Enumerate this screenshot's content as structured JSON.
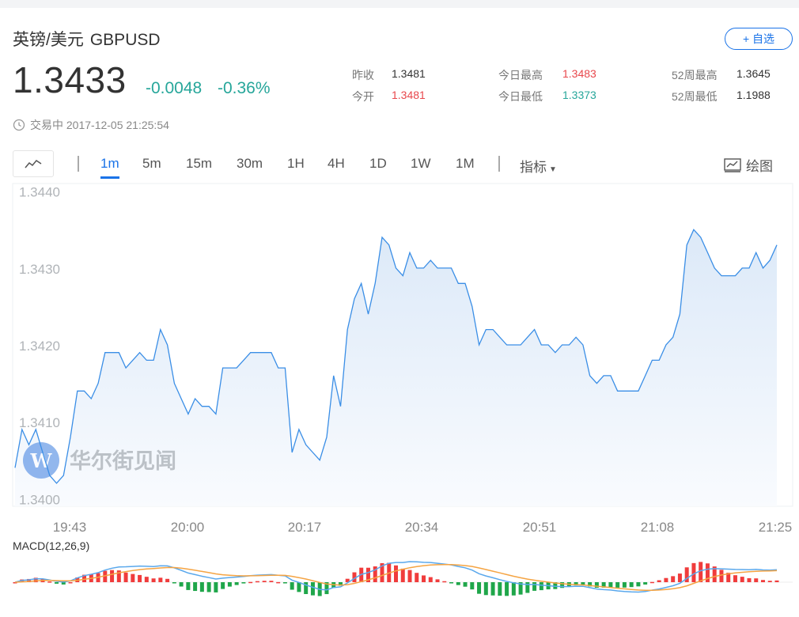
{
  "header": {
    "name": "英镑/美元",
    "code": "GBPUSD",
    "watch_label": "+ 自选",
    "price": "1.3433",
    "change": "-0.0048",
    "change_pct": "-0.36%",
    "status_text": "交易中 2017-12-05 21:25:54"
  },
  "stats": {
    "prev_close_label": "昨收",
    "prev_close": "1.3481",
    "open_label": "今开",
    "open": "1.3481",
    "high_label": "今日最高",
    "high": "1.3483",
    "low_label": "今日最低",
    "low": "1.3373",
    "w52_high_label": "52周最高",
    "w52_high": "1.3645",
    "w52_low_label": "52周最低",
    "w52_low": "1.1988"
  },
  "toolbar": {
    "timeframes": [
      "1m",
      "5m",
      "15m",
      "30m",
      "1H",
      "4H",
      "1D",
      "1W",
      "1M"
    ],
    "active_timeframe": "1m",
    "indicator_label": "指标",
    "draw_label": "绘图"
  },
  "watermark": {
    "text": "华尔街见闻"
  },
  "colors": {
    "line": "#3a8ee6",
    "up": "#e8474c",
    "down": "#26a69a",
    "accent": "#1a73e8",
    "macd_up": "#f03c3c",
    "macd_down": "#1fa64a",
    "dif": "#5aa8ec",
    "dea": "#f5a443"
  },
  "macd": {
    "label": "MACD(12,26,9)"
  },
  "chart_data": {
    "type": "line",
    "title": "",
    "xlabel": "",
    "ylabel": "",
    "ylim": [
      1.3399,
      1.3441
    ],
    "yticks": [
      "1.3440",
      "1.3430",
      "1.3420",
      "1.3410",
      "1.3400"
    ],
    "ytick_values": [
      1.344,
      1.343,
      1.342,
      1.341,
      1.34
    ],
    "xticks": [
      "19:43",
      "20:00",
      "20:17",
      "20:34",
      "20:51",
      "21:08",
      "21:25"
    ],
    "x_start": "19:40",
    "x_step_minutes": 1,
    "values": [
      1.3404,
      1.3409,
      1.3407,
      1.3409,
      1.3406,
      1.3403,
      1.3402,
      1.3403,
      1.3408,
      1.3414,
      1.3414,
      1.3413,
      1.3415,
      1.3419,
      1.3419,
      1.3419,
      1.3417,
      1.3418,
      1.3419,
      1.3418,
      1.3418,
      1.3422,
      1.342,
      1.3415,
      1.3413,
      1.3411,
      1.3413,
      1.3412,
      1.3412,
      1.3411,
      1.3417,
      1.3417,
      1.3417,
      1.3418,
      1.3419,
      1.3419,
      1.3419,
      1.3419,
      1.3417,
      1.3417,
      1.3406,
      1.3409,
      1.3407,
      1.3406,
      1.3405,
      1.3408,
      1.3416,
      1.3412,
      1.3422,
      1.3426,
      1.3428,
      1.3424,
      1.3428,
      1.3434,
      1.3433,
      1.343,
      1.3429,
      1.3432,
      1.343,
      1.343,
      1.3431,
      1.343,
      1.343,
      1.343,
      1.3428,
      1.3428,
      1.3425,
      1.342,
      1.3422,
      1.3422,
      1.3421,
      1.342,
      1.342,
      1.342,
      1.3421,
      1.3422,
      1.342,
      1.342,
      1.3419,
      1.342,
      1.342,
      1.3421,
      1.342,
      1.3416,
      1.3415,
      1.3416,
      1.3416,
      1.3414,
      1.3414,
      1.3414,
      1.3414,
      1.3416,
      1.3418,
      1.3418,
      1.342,
      1.3421,
      1.3424,
      1.3433,
      1.3435,
      1.3434,
      1.3432,
      1.343,
      1.3429,
      1.3429,
      1.3429,
      1.343,
      1.343,
      1.3432,
      1.343,
      1.3431,
      1.3433
    ]
  }
}
